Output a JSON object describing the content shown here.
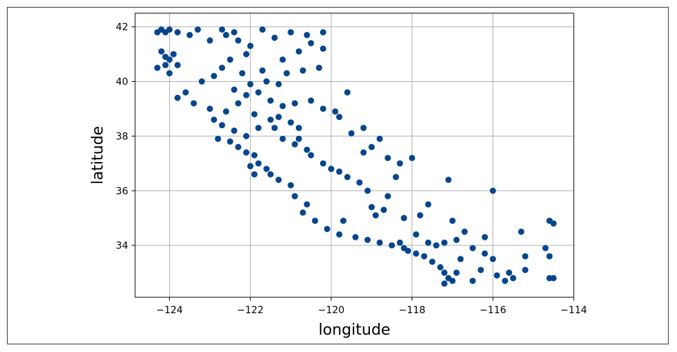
{
  "chart_data": {
    "type": "scatter",
    "title": "",
    "xlabel": "longitude",
    "ylabel": "latitude",
    "xlim": [
      -124.85,
      -114.0
    ],
    "ylim": [
      32.1,
      42.5
    ],
    "xticks": [
      -124,
      -122,
      -120,
      -118,
      -116,
      -114
    ],
    "yticks": [
      34,
      36,
      38,
      40,
      42
    ],
    "xtick_labels": [
      "−124",
      "−122",
      "−120",
      "−118",
      "−116",
      "−114"
    ],
    "ytick_labels": [
      "34",
      "36",
      "38",
      "40",
      "42"
    ],
    "grid": true,
    "point_color": "#08468c",
    "series": [
      {
        "points": [
          [
            -124.3,
            41.8
          ],
          [
            -124.2,
            41.9
          ],
          [
            -124.1,
            41.8
          ],
          [
            -124.0,
            41.9
          ],
          [
            -124.2,
            41.1
          ],
          [
            -124.1,
            40.9
          ],
          [
            -124.0,
            40.8
          ],
          [
            -123.9,
            41.0
          ],
          [
            -124.1,
            40.6
          ],
          [
            -124.3,
            40.5
          ],
          [
            -124.0,
            40.3
          ],
          [
            -123.8,
            40.6
          ],
          [
            -123.8,
            41.8
          ],
          [
            -123.5,
            41.7
          ],
          [
            -123.3,
            41.9
          ],
          [
            -123.0,
            41.5
          ],
          [
            -122.7,
            41.9
          ],
          [
            -122.6,
            41.7
          ],
          [
            -122.4,
            41.8
          ],
          [
            -122.3,
            41.5
          ],
          [
            -122.0,
            41.3
          ],
          [
            -121.7,
            41.9
          ],
          [
            -121.4,
            41.6
          ],
          [
            -121.0,
            41.8
          ],
          [
            -120.6,
            41.7
          ],
          [
            -120.2,
            41.8
          ],
          [
            -120.5,
            41.4
          ],
          [
            -120.2,
            41.2
          ],
          [
            -122.1,
            41.0
          ],
          [
            -122.5,
            40.8
          ],
          [
            -122.7,
            40.5
          ],
          [
            -122.2,
            40.3
          ],
          [
            -121.7,
            40.4
          ],
          [
            -121.1,
            40.3
          ],
          [
            -120.7,
            40.4
          ],
          [
            -120.3,
            40.5
          ],
          [
            -121.3,
            39.9
          ],
          [
            -121.6,
            40.0
          ],
          [
            -122.0,
            39.9
          ],
          [
            -122.4,
            39.7
          ],
          [
            -122.1,
            39.5
          ],
          [
            -121.8,
            39.6
          ],
          [
            -121.5,
            39.3
          ],
          [
            -121.2,
            39.1
          ],
          [
            -120.9,
            39.2
          ],
          [
            -120.5,
            39.3
          ],
          [
            -120.2,
            39.0
          ],
          [
            -119.9,
            38.9
          ],
          [
            -119.8,
            38.7
          ],
          [
            -123.6,
            39.6
          ],
          [
            -123.8,
            39.4
          ],
          [
            -123.4,
            39.2
          ],
          [
            -123.0,
            39.0
          ],
          [
            -122.9,
            38.6
          ],
          [
            -122.7,
            38.4
          ],
          [
            -122.4,
            38.2
          ],
          [
            -122.1,
            38.0
          ],
          [
            -121.8,
            38.3
          ],
          [
            -121.5,
            38.6
          ],
          [
            -121.3,
            38.7
          ],
          [
            -121.0,
            38.5
          ],
          [
            -120.8,
            38.3
          ],
          [
            -122.5,
            37.8
          ],
          [
            -122.3,
            37.6
          ],
          [
            -122.1,
            37.4
          ],
          [
            -121.9,
            37.3
          ],
          [
            -121.8,
            37.0
          ],
          [
            -121.6,
            36.8
          ],
          [
            -121.5,
            36.6
          ],
          [
            -121.9,
            36.6
          ],
          [
            -121.3,
            36.4
          ],
          [
            -121.0,
            36.2
          ],
          [
            -121.2,
            37.9
          ],
          [
            -120.9,
            37.7
          ],
          [
            -120.6,
            37.5
          ],
          [
            -120.5,
            37.3
          ],
          [
            -120.2,
            37.0
          ],
          [
            -120.0,
            36.8
          ],
          [
            -119.8,
            36.7
          ],
          [
            -119.6,
            36.5
          ],
          [
            -119.3,
            36.3
          ],
          [
            -119.1,
            36.0
          ],
          [
            -119.2,
            37.4
          ],
          [
            -119.0,
            37.6
          ],
          [
            -118.6,
            37.2
          ],
          [
            -118.3,
            37.0
          ],
          [
            -118.0,
            37.2
          ],
          [
            -120.9,
            35.8
          ],
          [
            -120.6,
            35.5
          ],
          [
            -120.7,
            35.2
          ],
          [
            -120.4,
            34.9
          ],
          [
            -120.1,
            34.6
          ],
          [
            -119.8,
            34.4
          ],
          [
            -119.4,
            34.3
          ],
          [
            -119.1,
            34.2
          ],
          [
            -118.8,
            34.1
          ],
          [
            -118.5,
            34.0
          ],
          [
            -118.3,
            34.1
          ],
          [
            -118.2,
            33.9
          ],
          [
            -118.1,
            33.8
          ],
          [
            -117.9,
            33.7
          ],
          [
            -117.7,
            33.6
          ],
          [
            -117.5,
            33.4
          ],
          [
            -117.3,
            33.2
          ],
          [
            -117.2,
            33.0
          ],
          [
            -117.1,
            32.8
          ],
          [
            -117.0,
            32.7
          ],
          [
            -117.2,
            32.6
          ],
          [
            -117.4,
            34.0
          ],
          [
            -117.6,
            34.1
          ],
          [
            -117.2,
            34.1
          ],
          [
            -116.9,
            34.2
          ],
          [
            -116.5,
            33.9
          ],
          [
            -116.2,
            33.7
          ],
          [
            -116.0,
            33.5
          ],
          [
            -115.6,
            33.0
          ],
          [
            -115.5,
            32.8
          ],
          [
            -115.7,
            32.7
          ],
          [
            -116.5,
            32.7
          ],
          [
            -116.9,
            33.0
          ],
          [
            -118.7,
            35.3
          ],
          [
            -119.0,
            35.4
          ],
          [
            -118.9,
            35.1
          ],
          [
            -118.2,
            35.0
          ],
          [
            -117.8,
            35.1
          ],
          [
            -117.6,
            35.5
          ],
          [
            -117.0,
            34.9
          ],
          [
            -116.7,
            34.5
          ],
          [
            -116.2,
            34.3
          ],
          [
            -115.3,
            34.5
          ],
          [
            -115.2,
            33.6
          ],
          [
            -114.6,
            34.9
          ],
          [
            -114.5,
            34.8
          ],
          [
            -114.6,
            33.6
          ],
          [
            -114.6,
            32.8
          ],
          [
            -114.5,
            32.8
          ],
          [
            -114.7,
            33.9
          ],
          [
            -116.0,
            36.0
          ],
          [
            -117.1,
            36.4
          ],
          [
            -115.2,
            33.1
          ],
          [
            -119.5,
            38.1
          ],
          [
            -119.2,
            38.3
          ],
          [
            -118.8,
            37.9
          ],
          [
            -119.6,
            39.6
          ],
          [
            -122.6,
            38.9
          ],
          [
            -122.3,
            39.2
          ],
          [
            -121.9,
            38.8
          ],
          [
            -121.4,
            38.3
          ],
          [
            -120.8,
            37.9
          ],
          [
            -122.0,
            36.9
          ],
          [
            -123.2,
            40.0
          ],
          [
            -122.9,
            40.2
          ],
          [
            -121.2,
            40.8
          ],
          [
            -120.8,
            41.1
          ],
          [
            -122.8,
            37.9
          ],
          [
            -119.7,
            34.9
          ],
          [
            -118.6,
            35.8
          ],
          [
            -117.9,
            34.4
          ],
          [
            -116.8,
            33.5
          ],
          [
            -116.3,
            33.1
          ],
          [
            -115.9,
            32.9
          ],
          [
            -118.4,
            36.5
          ]
        ]
      }
    ]
  }
}
